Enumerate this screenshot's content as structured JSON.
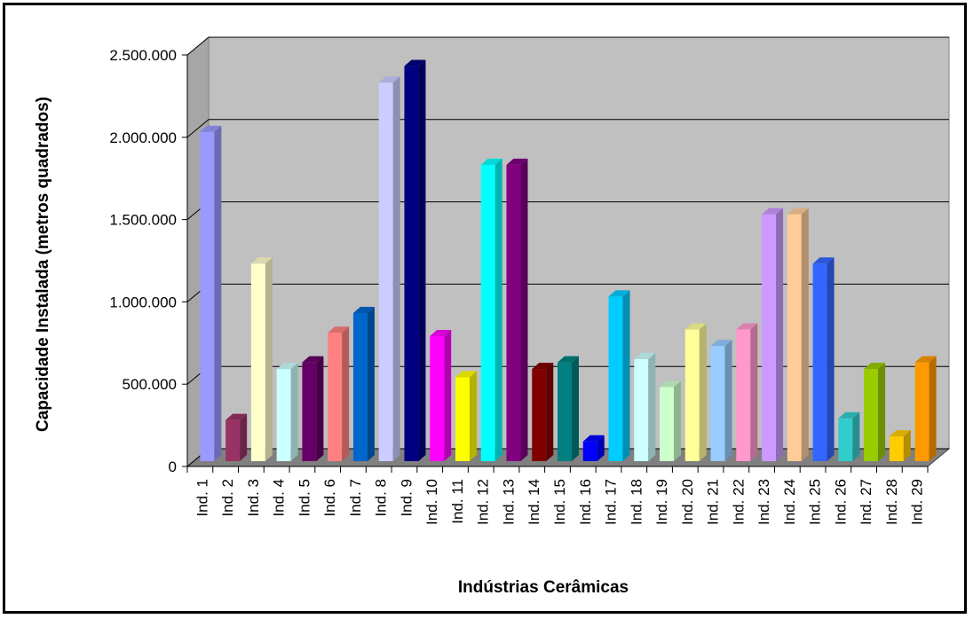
{
  "chart_data": {
    "type": "bar",
    "title": "",
    "xlabel": "Indústrias Cerâmicas",
    "ylabel": "Capacidade Instalada (metros quadrados)",
    "ylim": [
      0,
      2500000
    ],
    "yticks": [
      0,
      500000,
      1000000,
      1500000,
      2000000,
      2500000
    ],
    "ytick_labels": [
      "0",
      "500.000",
      "1.000.000",
      "1.500.000",
      "2.000.000",
      "2.500.000"
    ],
    "grid": true,
    "categories": [
      "Ind. 1",
      "Ind. 2",
      "Ind. 3",
      "Ind. 4",
      "Ind. 5",
      "Ind. 6",
      "Ind. 7",
      "Ind. 8",
      "Ind. 9",
      "Ind. 10",
      "Ind. 11",
      "Ind. 12",
      "Ind. 13",
      "Ind. 14",
      "Ind. 15",
      "Ind. 16",
      "Ind. 17",
      "Ind. 18",
      "Ind. 19",
      "Ind. 20",
      "Ind. 21",
      "Ind. 22",
      "Ind. 23",
      "Ind. 24",
      "Ind. 25",
      "Ind. 26",
      "Ind. 27",
      "Ind. 28",
      "Ind. 29"
    ],
    "values": [
      2000000,
      250000,
      1200000,
      560000,
      600000,
      780000,
      900000,
      2300000,
      2400000,
      760000,
      510000,
      1800000,
      1800000,
      560000,
      600000,
      120000,
      1000000,
      620000,
      450000,
      800000,
      700000,
      800000,
      1500000,
      1500000,
      1200000,
      260000,
      560000,
      150000,
      600000
    ],
    "colors": [
      "#9999ff",
      "#993366",
      "#ffffcc",
      "#ccffff",
      "#660066",
      "#ff8080",
      "#0066cc",
      "#ccccff",
      "#000080",
      "#ff00ff",
      "#ffff00",
      "#00ffff",
      "#800080",
      "#800000",
      "#008080",
      "#0000ff",
      "#00ccff",
      "#ccffff",
      "#ccffcc",
      "#ffff99",
      "#99ccff",
      "#ff99cc",
      "#cc99ff",
      "#ffcc99",
      "#3366ff",
      "#33cccc",
      "#99cc00",
      "#ffcc00",
      "#ff9900"
    ]
  }
}
